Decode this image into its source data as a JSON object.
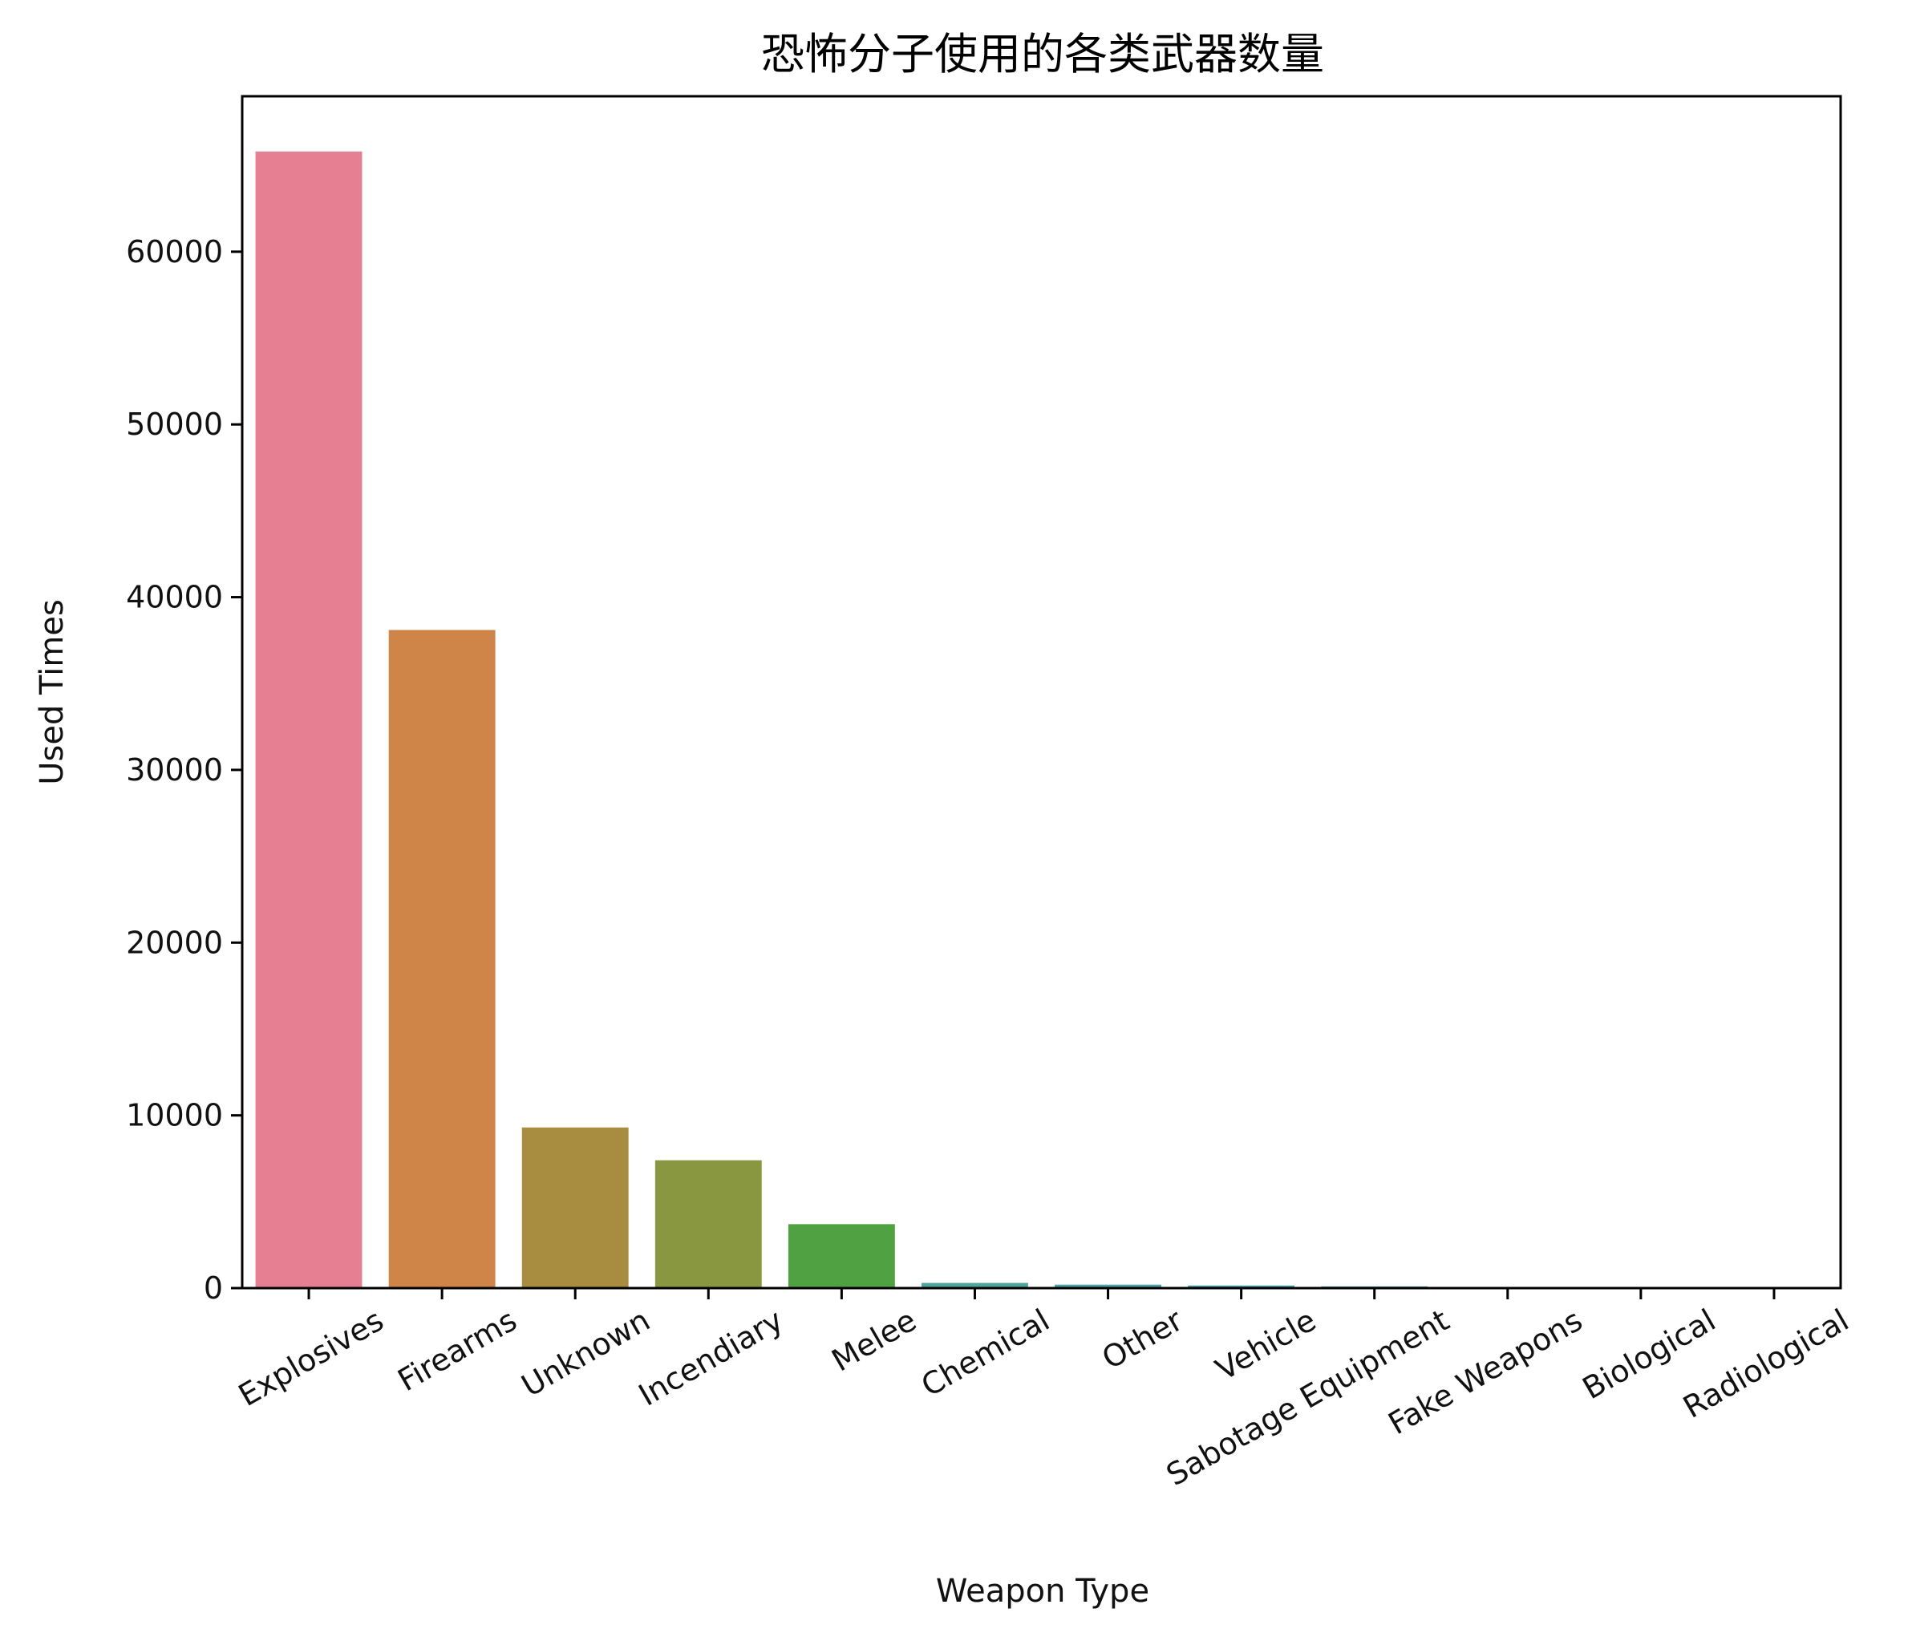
{
  "chart_data": {
    "type": "bar",
    "title": "恐怖分子使用的各类武器数量",
    "xlabel": "Weapon Type",
    "ylabel": "Used Times",
    "categories": [
      "Explosives",
      "Firearms",
      "Unknown",
      "Incendiary",
      "Melee",
      "Chemical",
      "Other",
      "Vehicle",
      "Sabotage Equipment",
      "Fake Weapons",
      "Biological",
      "Radiological"
    ],
    "values": [
      65800,
      38100,
      9300,
      7400,
      3700,
      300,
      200,
      150,
      100,
      30,
      30,
      15
    ],
    "colors": [
      "#e77f92",
      "#cf8548",
      "#a88c40",
      "#8a9741",
      "#50a142",
      "#4ca69a",
      "#4aa4a9",
      "#4ba2ad",
      "#4b9fb2",
      "#4a9ab9",
      "#5a96d0",
      "#7c90e6"
    ],
    "ylim": [
      0,
      69000
    ],
    "yticks": [
      0,
      10000,
      20000,
      30000,
      40000,
      50000,
      60000
    ],
    "grid": false,
    "legend": "none"
  }
}
